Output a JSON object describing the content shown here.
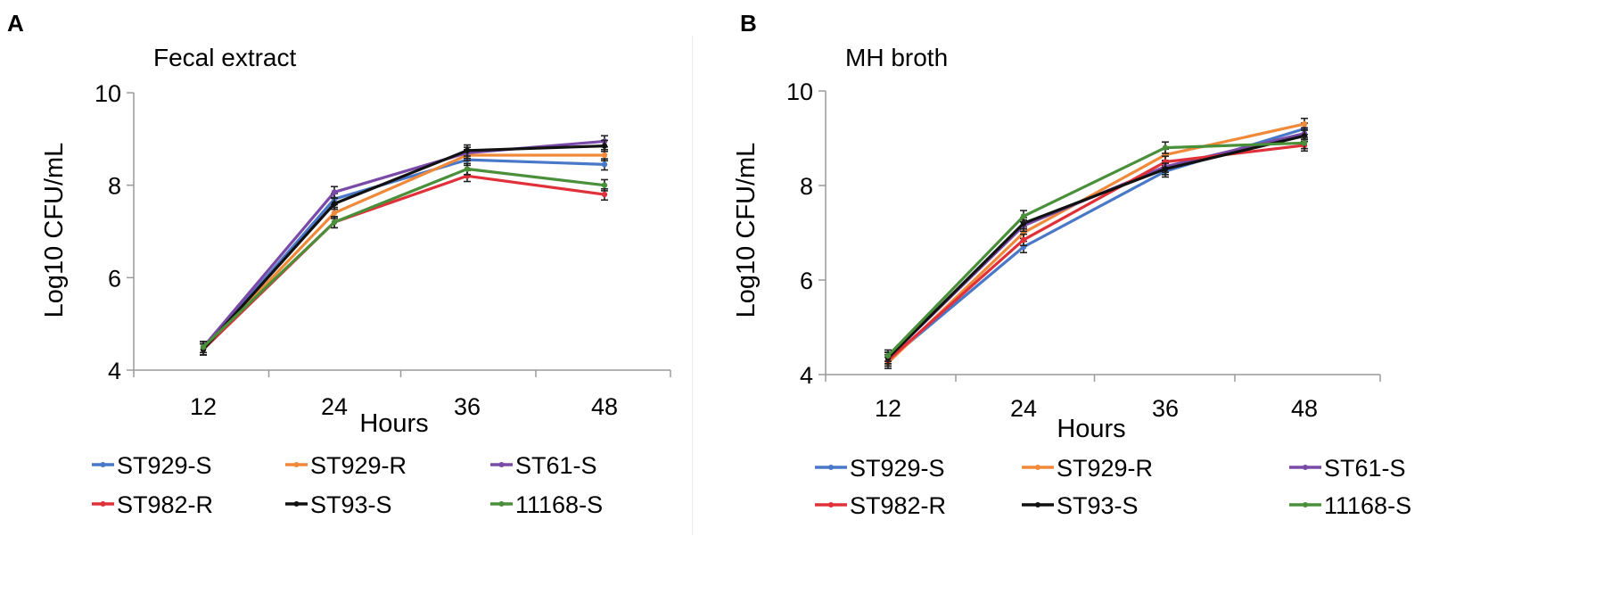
{
  "chart_data": [
    {
      "panel": "A",
      "type": "line",
      "title": "Fecal extract",
      "xlabel": "Hours",
      "ylabel": "Log10 CFU/mL",
      "x": [
        12,
        24,
        36,
        48
      ],
      "x_ticks": [
        "12",
        "24",
        "36",
        "48"
      ],
      "ylim": [
        4,
        10
      ],
      "y_ticks": [
        "4",
        "6",
        "8",
        "10"
      ],
      "error_bar_halfwidth": 0.12,
      "legend_position": "bottom",
      "series": [
        {
          "name": "ST929-S",
          "color": "#4a78c8",
          "values": [
            4.45,
            7.7,
            8.55,
            8.45
          ]
        },
        {
          "name": "ST929-R",
          "color": "#f08a3a",
          "values": [
            4.45,
            7.4,
            8.65,
            8.65
          ]
        },
        {
          "name": "ST61-S",
          "color": "#7a4aa8",
          "values": [
            4.5,
            7.85,
            8.7,
            8.95
          ]
        },
        {
          "name": "ST982-R",
          "color": "#e0303a",
          "values": [
            4.45,
            7.2,
            8.2,
            7.8
          ]
        },
        {
          "name": "ST93-S",
          "color": "#111111",
          "values": [
            4.45,
            7.6,
            8.75,
            8.85
          ]
        },
        {
          "name": "11168-S",
          "color": "#4a8f3a",
          "values": [
            4.5,
            7.2,
            8.35,
            8.0
          ]
        }
      ]
    },
    {
      "panel": "B",
      "type": "line",
      "title": "MH broth",
      "xlabel": "Hours",
      "ylabel": "Log10 CFU/mL",
      "x": [
        12,
        24,
        36,
        48
      ],
      "x_ticks": [
        "12",
        "24",
        "36",
        "48"
      ],
      "ylim": [
        4,
        10
      ],
      "y_ticks": [
        "4",
        "6",
        "8",
        "10"
      ],
      "error_bar_halfwidth": 0.12,
      "legend_position": "bottom",
      "series": [
        {
          "name": "ST929-S",
          "color": "#4a78c8",
          "values": [
            4.3,
            6.7,
            8.3,
            9.2
          ]
        },
        {
          "name": "ST929-R",
          "color": "#f08a3a",
          "values": [
            4.25,
            7.0,
            8.65,
            9.3
          ]
        },
        {
          "name": "ST61-S",
          "color": "#7a4aa8",
          "values": [
            4.35,
            7.15,
            8.4,
            9.1
          ]
        },
        {
          "name": "ST982-R",
          "color": "#e0303a",
          "values": [
            4.3,
            6.85,
            8.5,
            8.85
          ]
        },
        {
          "name": "ST93-S",
          "color": "#111111",
          "values": [
            4.35,
            7.2,
            8.35,
            9.05
          ]
        },
        {
          "name": "11168-S",
          "color": "#4a8f3a",
          "values": [
            4.4,
            7.35,
            8.8,
            8.9
          ]
        }
      ]
    }
  ]
}
